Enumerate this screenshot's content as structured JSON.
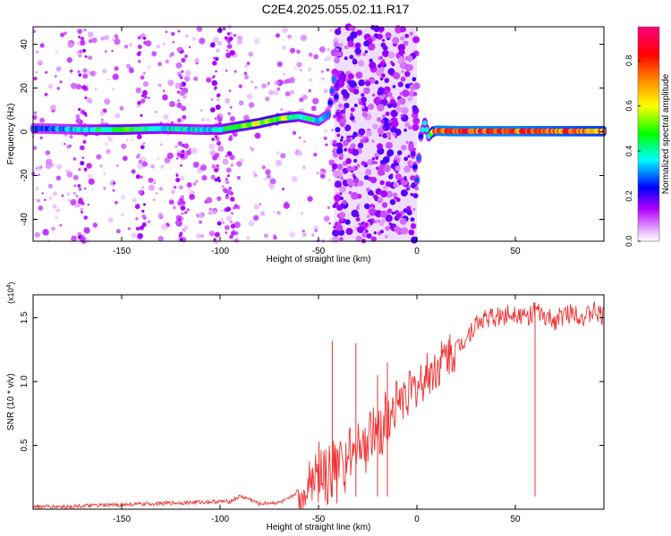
{
  "title": "C2E4.2025.055.02.11.R17",
  "chart_data": [
    {
      "type": "heatmap",
      "xlabel": "Height of straight line (km)",
      "ylabel": "Frequency (Hz)",
      "xlim": [
        -195,
        95
      ],
      "ylim": [
        -50,
        48
      ],
      "xticks": [
        -150,
        -100,
        -50,
        0,
        50
      ],
      "yticks": [
        -40,
        -20,
        0,
        20,
        40
      ],
      "colorbar": {
        "label": "Normalized spectral amplitude",
        "range": [
          0,
          0.95
        ],
        "ticks": [
          "0.0",
          "0.2",
          "0.4",
          "0.6",
          "0.8"
        ],
        "colors": [
          "#ffffff",
          "#e6b3ff",
          "#b400ff",
          "#0000ff",
          "#00ffff",
          "#00ff00",
          "#ffff00",
          "#ff8c00",
          "#ff0000",
          "#ff0080"
        ]
      },
      "ridge": {
        "x": [
          -190,
          -170,
          -150,
          -130,
          -110,
          -100,
          -90,
          -80,
          -70,
          -60,
          -55,
          -50,
          -45,
          -42,
          -40,
          -35,
          -5,
          -2,
          0,
          2,
          4,
          6,
          8,
          10,
          20,
          50,
          70,
          94
        ],
        "freq": [
          1.5,
          1.0,
          1.0,
          1.5,
          1.0,
          1.0,
          2.5,
          4.0,
          6.0,
          7.0,
          6.0,
          5.0,
          8.0,
          24.0,
          8.0,
          0,
          0,
          -10.0,
          -22.0,
          -2.0,
          4.0,
          -2.0,
          0,
          0.5,
          0.3,
          0.3,
          0.3,
          0.3
        ],
        "amplitude": [
          0.3,
          0.4,
          0.55,
          0.45,
          0.4,
          0.45,
          0.55,
          0.6,
          0.6,
          0.5,
          0.45,
          0.4,
          0.35,
          0.3,
          0.2,
          0,
          0,
          0.2,
          0.3,
          0.3,
          0.45,
          0.4,
          0.7,
          0.9,
          0.9,
          0.9,
          0.85,
          0.8
        ]
      },
      "noise_band_x": [
        -42,
        0
      ]
    },
    {
      "type": "line",
      "xlabel": "Height of straight line (km)",
      "ylabel": "SNR (10 * v/v)",
      "yexp": "(x10",
      "yexp_sup": "4",
      "yexp_close": ")",
      "xlim": [
        -195,
        95
      ],
      "ylim": [
        0,
        1.68
      ],
      "xticks": [
        -150,
        -100,
        -50,
        0,
        50
      ],
      "yticks": [
        "0.5",
        "1.0",
        "1.5"
      ],
      "color": "#ee3333",
      "series": [
        {
          "x": [
            -195,
            -180,
            -160,
            -140,
            -120,
            -100,
            -95,
            -90,
            -85,
            -80,
            -75,
            -70,
            -65,
            -60,
            -55,
            -50,
            -45,
            -40,
            -35,
            -30,
            -25,
            -20,
            -15,
            -10,
            -5,
            0,
            5,
            10,
            15,
            20,
            25,
            30,
            35,
            40,
            45,
            50,
            55,
            60,
            65,
            70,
            75,
            80,
            85,
            90,
            95
          ],
          "y": [
            0.02,
            0.02,
            0.03,
            0.04,
            0.05,
            0.06,
            0.06,
            0.1,
            0.08,
            0.04,
            0.05,
            0.05,
            0.08,
            0.15,
            0.3,
            0.35,
            0.3,
            0.35,
            0.4,
            0.6,
            0.55,
            0.7,
            0.75,
            0.85,
            0.9,
            0.95,
            1.05,
            1.1,
            1.2,
            1.25,
            1.35,
            1.45,
            1.5,
            1.5,
            1.52,
            1.55,
            1.5,
            1.55,
            1.5,
            1.48,
            1.52,
            1.55,
            1.5,
            1.55,
            1.5
          ]
        }
      ],
      "spikes": [
        {
          "x": -43,
          "y": 1.32
        },
        {
          "x": -31,
          "y": 1.3
        },
        {
          "x": -20,
          "y": 1.05
        },
        {
          "x": -15,
          "y": 1.15
        },
        {
          "x": 60,
          "y": 1.62
        }
      ]
    }
  ]
}
